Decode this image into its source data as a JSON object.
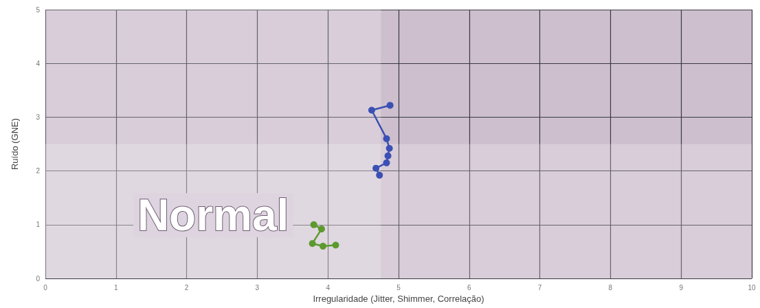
{
  "chart_data": {
    "type": "line",
    "xlabel": "Irregularidade (Jitter, Shimmer, Correlação)",
    "ylabel": "Ruído (GNE)",
    "xlim": [
      0,
      10
    ],
    "xticks": [
      0,
      1,
      2,
      3,
      4,
      5,
      6,
      7,
      8,
      9,
      10
    ],
    "ylim": [
      0,
      5
    ],
    "yticks": [
      0,
      1,
      2,
      3,
      4,
      5
    ],
    "grid": true,
    "marker": "circle",
    "line_style": "solid",
    "series": [
      {
        "color": "#3b50b4",
        "x": [
          4.88,
          4.62,
          4.83,
          4.87,
          4.85,
          4.83,
          4.68,
          4.73
        ],
        "values": [
          3.22,
          3.13,
          2.6,
          2.42,
          2.28,
          2.15,
          2.05,
          1.92
        ]
      },
      {
        "color": "#5c9a2e",
        "x": [
          3.8,
          3.91,
          3.78,
          3.93,
          4.11
        ],
        "values": [
          1.0,
          0.92,
          0.65,
          0.6,
          0.62
        ]
      }
    ],
    "bands": [
      {
        "axis": "x",
        "from": 0,
        "to": 4.75,
        "label": "Normal",
        "color": "#ffffff"
      },
      {
        "axis": "y",
        "from": 0,
        "to": 2.5,
        "color": "#ffffff"
      }
    ]
  }
}
